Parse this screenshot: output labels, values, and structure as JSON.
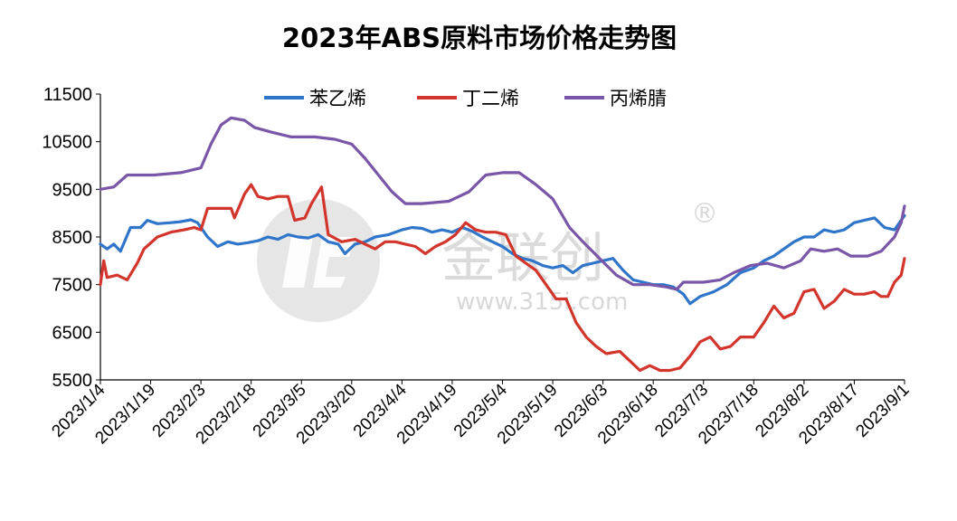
{
  "chart_data": {
    "type": "line",
    "title": "2023年ABS原料市场价格走势图",
    "xlabel": "",
    "ylabel": "",
    "ylim": [
      5500,
      11500
    ],
    "yticks": [
      "11500",
      "10500",
      "9500",
      "8500",
      "7500",
      "6500",
      "5500"
    ],
    "x_start": "2023/1/4",
    "x_end": "2023/9/1",
    "xticks": [
      "2023/1/4",
      "2023/1/19",
      "2023/2/3",
      "2023/2/18",
      "2023/3/5",
      "2023/3/20",
      "2023/4/4",
      "2023/4/19",
      "2023/5/4",
      "2023/5/19",
      "2023/6/3",
      "2023/6/18",
      "2023/7/3",
      "2023/7/18",
      "2023/8/2",
      "2023/8/17",
      "2023/9/1"
    ],
    "legend_position": "top",
    "grid": false,
    "series": [
      {
        "name": "苯乙烯",
        "color": "#2f75c9",
        "points": [
          [
            "2023/1/4",
            8350
          ],
          [
            "2023/1/6",
            8250
          ],
          [
            "2023/1/8",
            8350
          ],
          [
            "2023/1/10",
            8200
          ],
          [
            "2023/1/13",
            8700
          ],
          [
            "2023/1/16",
            8700
          ],
          [
            "2023/1/18",
            8850
          ],
          [
            "2023/1/21",
            8780
          ],
          [
            "2023/1/25",
            8800
          ],
          [
            "2023/1/28",
            8820
          ],
          [
            "2023/1/31",
            8860
          ],
          [
            "2023/2/2",
            8800
          ],
          [
            "2023/2/5",
            8500
          ],
          [
            "2023/2/8",
            8300
          ],
          [
            "2023/2/11",
            8400
          ],
          [
            "2023/2/14",
            8350
          ],
          [
            "2023/2/17",
            8380
          ],
          [
            "2023/2/20",
            8420
          ],
          [
            "2023/2/23",
            8500
          ],
          [
            "2023/2/26",
            8450
          ],
          [
            "2023/3/1",
            8550
          ],
          [
            "2023/3/4",
            8500
          ],
          [
            "2023/3/7",
            8480
          ],
          [
            "2023/3/10",
            8550
          ],
          [
            "2023/3/13",
            8400
          ],
          [
            "2023/3/16",
            8350
          ],
          [
            "2023/3/18",
            8150
          ],
          [
            "2023/3/21",
            8350
          ],
          [
            "2023/3/24",
            8400
          ],
          [
            "2023/3/27",
            8500
          ],
          [
            "2023/3/31",
            8550
          ],
          [
            "2023/4/4",
            8650
          ],
          [
            "2023/4/7",
            8700
          ],
          [
            "2023/4/10",
            8680
          ],
          [
            "2023/4/13",
            8600
          ],
          [
            "2023/4/16",
            8650
          ],
          [
            "2023/4/19",
            8600
          ],
          [
            "2023/4/22",
            8700
          ],
          [
            "2023/4/25",
            8620
          ],
          [
            "2023/4/28",
            8500
          ],
          [
            "2023/5/1",
            8400
          ],
          [
            "2023/5/4",
            8300
          ],
          [
            "2023/5/7",
            8150
          ],
          [
            "2023/5/10",
            8050
          ],
          [
            "2023/5/13",
            8000
          ],
          [
            "2023/5/16",
            7900
          ],
          [
            "2023/5/19",
            7850
          ],
          [
            "2023/5/22",
            7900
          ],
          [
            "2023/5/25",
            7750
          ],
          [
            "2023/5/28",
            7900
          ],
          [
            "2023/5/31",
            7950
          ],
          [
            "2023/6/3",
            8000
          ],
          [
            "2023/6/6",
            8050
          ],
          [
            "2023/6/9",
            7800
          ],
          [
            "2023/6/12",
            7600
          ],
          [
            "2023/6/15",
            7550
          ],
          [
            "2023/6/18",
            7500
          ],
          [
            "2023/6/21",
            7500
          ],
          [
            "2023/6/24",
            7450
          ],
          [
            "2023/6/27",
            7300
          ],
          [
            "2023/6/29",
            7100
          ],
          [
            "2023/7/2",
            7250
          ],
          [
            "2023/7/6",
            7350
          ],
          [
            "2023/7/10",
            7500
          ],
          [
            "2023/7/14",
            7750
          ],
          [
            "2023/7/18",
            7850
          ],
          [
            "2023/7/21",
            8000
          ],
          [
            "2023/7/24",
            8100
          ],
          [
            "2023/7/27",
            8250
          ],
          [
            "2023/7/30",
            8400
          ],
          [
            "2023/8/2",
            8500
          ],
          [
            "2023/8/5",
            8500
          ],
          [
            "2023/8/8",
            8650
          ],
          [
            "2023/8/11",
            8600
          ],
          [
            "2023/8/14",
            8650
          ],
          [
            "2023/8/17",
            8800
          ],
          [
            "2023/8/20",
            8850
          ],
          [
            "2023/8/23",
            8900
          ],
          [
            "2023/8/26",
            8700
          ],
          [
            "2023/8/29",
            8650
          ],
          [
            "2023/9/1",
            8950
          ]
        ]
      },
      {
        "name": "丁二烯",
        "color": "#d2352b",
        "points": [
          [
            "2023/1/4",
            7500
          ],
          [
            "2023/1/5",
            8000
          ],
          [
            "2023/1/6",
            7650
          ],
          [
            "2023/1/9",
            7700
          ],
          [
            "2023/1/12",
            7600
          ],
          [
            "2023/1/15",
            7950
          ],
          [
            "2023/1/17",
            8250
          ],
          [
            "2023/1/21",
            8500
          ],
          [
            "2023/1/25",
            8600
          ],
          [
            "2023/1/29",
            8650
          ],
          [
            "2023/2/1",
            8700
          ],
          [
            "2023/2/3",
            8650
          ],
          [
            "2023/2/5",
            9100
          ],
          [
            "2023/2/9",
            9100
          ],
          [
            "2023/2/12",
            9100
          ],
          [
            "2023/2/13",
            8900
          ],
          [
            "2023/2/16",
            9400
          ],
          [
            "2023/2/18",
            9600
          ],
          [
            "2023/2/20",
            9350
          ],
          [
            "2023/2/23",
            9300
          ],
          [
            "2023/2/26",
            9350
          ],
          [
            "2023/3/1",
            9350
          ],
          [
            "2023/3/3",
            8850
          ],
          [
            "2023/3/6",
            8900
          ],
          [
            "2023/3/8",
            9200
          ],
          [
            "2023/3/11",
            9550
          ],
          [
            "2023/3/13",
            8550
          ],
          [
            "2023/3/17",
            8400
          ],
          [
            "2023/3/21",
            8450
          ],
          [
            "2023/3/24",
            8350
          ],
          [
            "2023/3/27",
            8250
          ],
          [
            "2023/3/30",
            8400
          ],
          [
            "2023/4/2",
            8400
          ],
          [
            "2023/4/5",
            8350
          ],
          [
            "2023/4/8",
            8300
          ],
          [
            "2023/4/11",
            8150
          ],
          [
            "2023/4/14",
            8300
          ],
          [
            "2023/4/17",
            8400
          ],
          [
            "2023/4/20",
            8550
          ],
          [
            "2023/4/23",
            8800
          ],
          [
            "2023/4/26",
            8650
          ],
          [
            "2023/4/29",
            8600
          ],
          [
            "2023/5/2",
            8600
          ],
          [
            "2023/5/5",
            8550
          ],
          [
            "2023/5/8",
            8100
          ],
          [
            "2023/5/11",
            7950
          ],
          [
            "2023/5/14",
            7800
          ],
          [
            "2023/5/17",
            7500
          ],
          [
            "2023/5/20",
            7200
          ],
          [
            "2023/5/23",
            7200
          ],
          [
            "2023/5/26",
            6700
          ],
          [
            "2023/5/29",
            6400
          ],
          [
            "2023/6/1",
            6200
          ],
          [
            "2023/6/4",
            6050
          ],
          [
            "2023/6/8",
            6100
          ],
          [
            "2023/6/11",
            5900
          ],
          [
            "2023/6/14",
            5700
          ],
          [
            "2023/6/17",
            5800
          ],
          [
            "2023/6/20",
            5700
          ],
          [
            "2023/6/23",
            5700
          ],
          [
            "2023/6/26",
            5750
          ],
          [
            "2023/6/29",
            6000
          ],
          [
            "2023/7/2",
            6300
          ],
          [
            "2023/7/5",
            6400
          ],
          [
            "2023/7/8",
            6150
          ],
          [
            "2023/7/11",
            6200
          ],
          [
            "2023/7/14",
            6400
          ],
          [
            "2023/7/18",
            6400
          ],
          [
            "2023/7/21",
            6700
          ],
          [
            "2023/7/24",
            7050
          ],
          [
            "2023/7/27",
            6800
          ],
          [
            "2023/7/30",
            6900
          ],
          [
            "2023/8/2",
            7350
          ],
          [
            "2023/8/5",
            7400
          ],
          [
            "2023/8/8",
            7000
          ],
          [
            "2023/8/11",
            7150
          ],
          [
            "2023/8/14",
            7400
          ],
          [
            "2023/8/17",
            7300
          ],
          [
            "2023/8/20",
            7300
          ],
          [
            "2023/8/23",
            7350
          ],
          [
            "2023/8/25",
            7250
          ],
          [
            "2023/8/27",
            7250
          ],
          [
            "2023/8/29",
            7550
          ],
          [
            "2023/8/31",
            7700
          ],
          [
            "2023/9/1",
            8050
          ]
        ]
      },
      {
        "name": "丙烯腈",
        "color": "#7a56a8",
        "points": [
          [
            "2023/1/4",
            9500
          ],
          [
            "2023/1/8",
            9550
          ],
          [
            "2023/1/12",
            9800
          ],
          [
            "2023/1/20",
            9800
          ],
          [
            "2023/1/28",
            9850
          ],
          [
            "2023/2/3",
            9950
          ],
          [
            "2023/2/6",
            10450
          ],
          [
            "2023/2/9",
            10850
          ],
          [
            "2023/2/12",
            11000
          ],
          [
            "2023/2/16",
            10950
          ],
          [
            "2023/2/19",
            10800
          ],
          [
            "2023/2/24",
            10700
          ],
          [
            "2023/3/2",
            10600
          ],
          [
            "2023/3/9",
            10600
          ],
          [
            "2023/3/15",
            10550
          ],
          [
            "2023/3/20",
            10450
          ],
          [
            "2023/3/24",
            10150
          ],
          [
            "2023/3/28",
            9800
          ],
          [
            "2023/4/1",
            9450
          ],
          [
            "2023/4/5",
            9200
          ],
          [
            "2023/4/10",
            9200
          ],
          [
            "2023/4/18",
            9250
          ],
          [
            "2023/4/24",
            9450
          ],
          [
            "2023/4/29",
            9800
          ],
          [
            "2023/5/4",
            9850
          ],
          [
            "2023/5/9",
            9850
          ],
          [
            "2023/5/14",
            9600
          ],
          [
            "2023/5/19",
            9300
          ],
          [
            "2023/5/24",
            8700
          ],
          [
            "2023/5/28",
            8400
          ],
          [
            "2023/6/2",
            8050
          ],
          [
            "2023/6/7",
            7700
          ],
          [
            "2023/6/12",
            7500
          ],
          [
            "2023/6/17",
            7500
          ],
          [
            "2023/6/22",
            7450
          ],
          [
            "2023/6/25",
            7400
          ],
          [
            "2023/6/27",
            7550
          ],
          [
            "2023/7/3",
            7550
          ],
          [
            "2023/7/8",
            7600
          ],
          [
            "2023/7/12",
            7750
          ],
          [
            "2023/7/17",
            7900
          ],
          [
            "2023/7/22",
            7950
          ],
          [
            "2023/7/27",
            7850
          ],
          [
            "2023/8/1",
            8000
          ],
          [
            "2023/8/4",
            8250
          ],
          [
            "2023/8/8",
            8200
          ],
          [
            "2023/8/12",
            8250
          ],
          [
            "2023/8/16",
            8100
          ],
          [
            "2023/8/21",
            8100
          ],
          [
            "2023/8/25",
            8200
          ],
          [
            "2023/8/29",
            8500
          ],
          [
            "2023/8/31",
            8800
          ],
          [
            "2023/9/1",
            9150
          ]
        ]
      }
    ]
  },
  "watermark": {
    "brand": "金联创",
    "url": "www.315i.com",
    "registered_mark": "®"
  }
}
